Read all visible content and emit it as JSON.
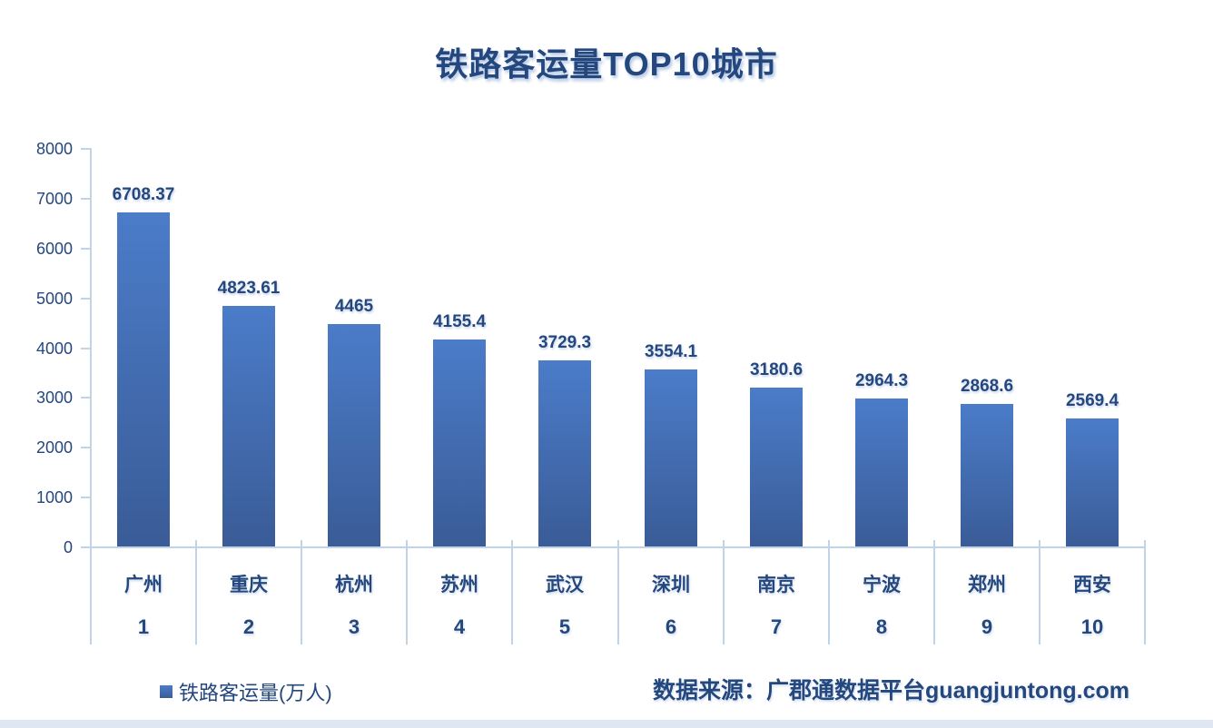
{
  "title": "铁路客运量TOP10城市",
  "chart_data": {
    "type": "bar",
    "title": "铁路客运量TOP10城市",
    "categories": [
      "广州",
      "重庆",
      "杭州",
      "苏州",
      "武汉",
      "深圳",
      "南京",
      "宁波",
      "郑州",
      "西安"
    ],
    "rank_labels": [
      "1",
      "2",
      "3",
      "4",
      "5",
      "6",
      "7",
      "8",
      "9",
      "10"
    ],
    "values": [
      6708.37,
      4823.61,
      4465,
      4155.4,
      3729.3,
      3554.1,
      3180.6,
      2964.3,
      2868.6,
      2569.4
    ],
    "value_labels": [
      "6708.37",
      "4823.61",
      "4465",
      "4155.4",
      "3729.3",
      "3554.1",
      "3180.6",
      "2964.3",
      "2868.6",
      "2569.4"
    ],
    "series_name": "铁路客运量(万人)",
    "xlabel": "",
    "ylabel": "",
    "ylim": [
      0,
      8000
    ],
    "ytick_step": 1000,
    "ytick_labels": [
      "0",
      "1000",
      "2000",
      "3000",
      "4000",
      "5000",
      "6000",
      "7000",
      "8000"
    ],
    "grid": false,
    "legend_position": "bottom-left",
    "bar_color_top": "#4b7cc9",
    "bar_color_bottom": "#3a5c97"
  },
  "legend": {
    "swatch_icon": "square-swatch",
    "label": "铁路客运量(万人)"
  },
  "source": {
    "text": "数据来源：广郡通数据平台guangjuntong.com"
  },
  "colors": {
    "text_navy": "#24477e",
    "axis_light_blue": "#c0d3e9",
    "bottom_strip": "#dee7f2",
    "bar_top": "#4b7cc9",
    "bar_bottom": "#3a5c97"
  }
}
